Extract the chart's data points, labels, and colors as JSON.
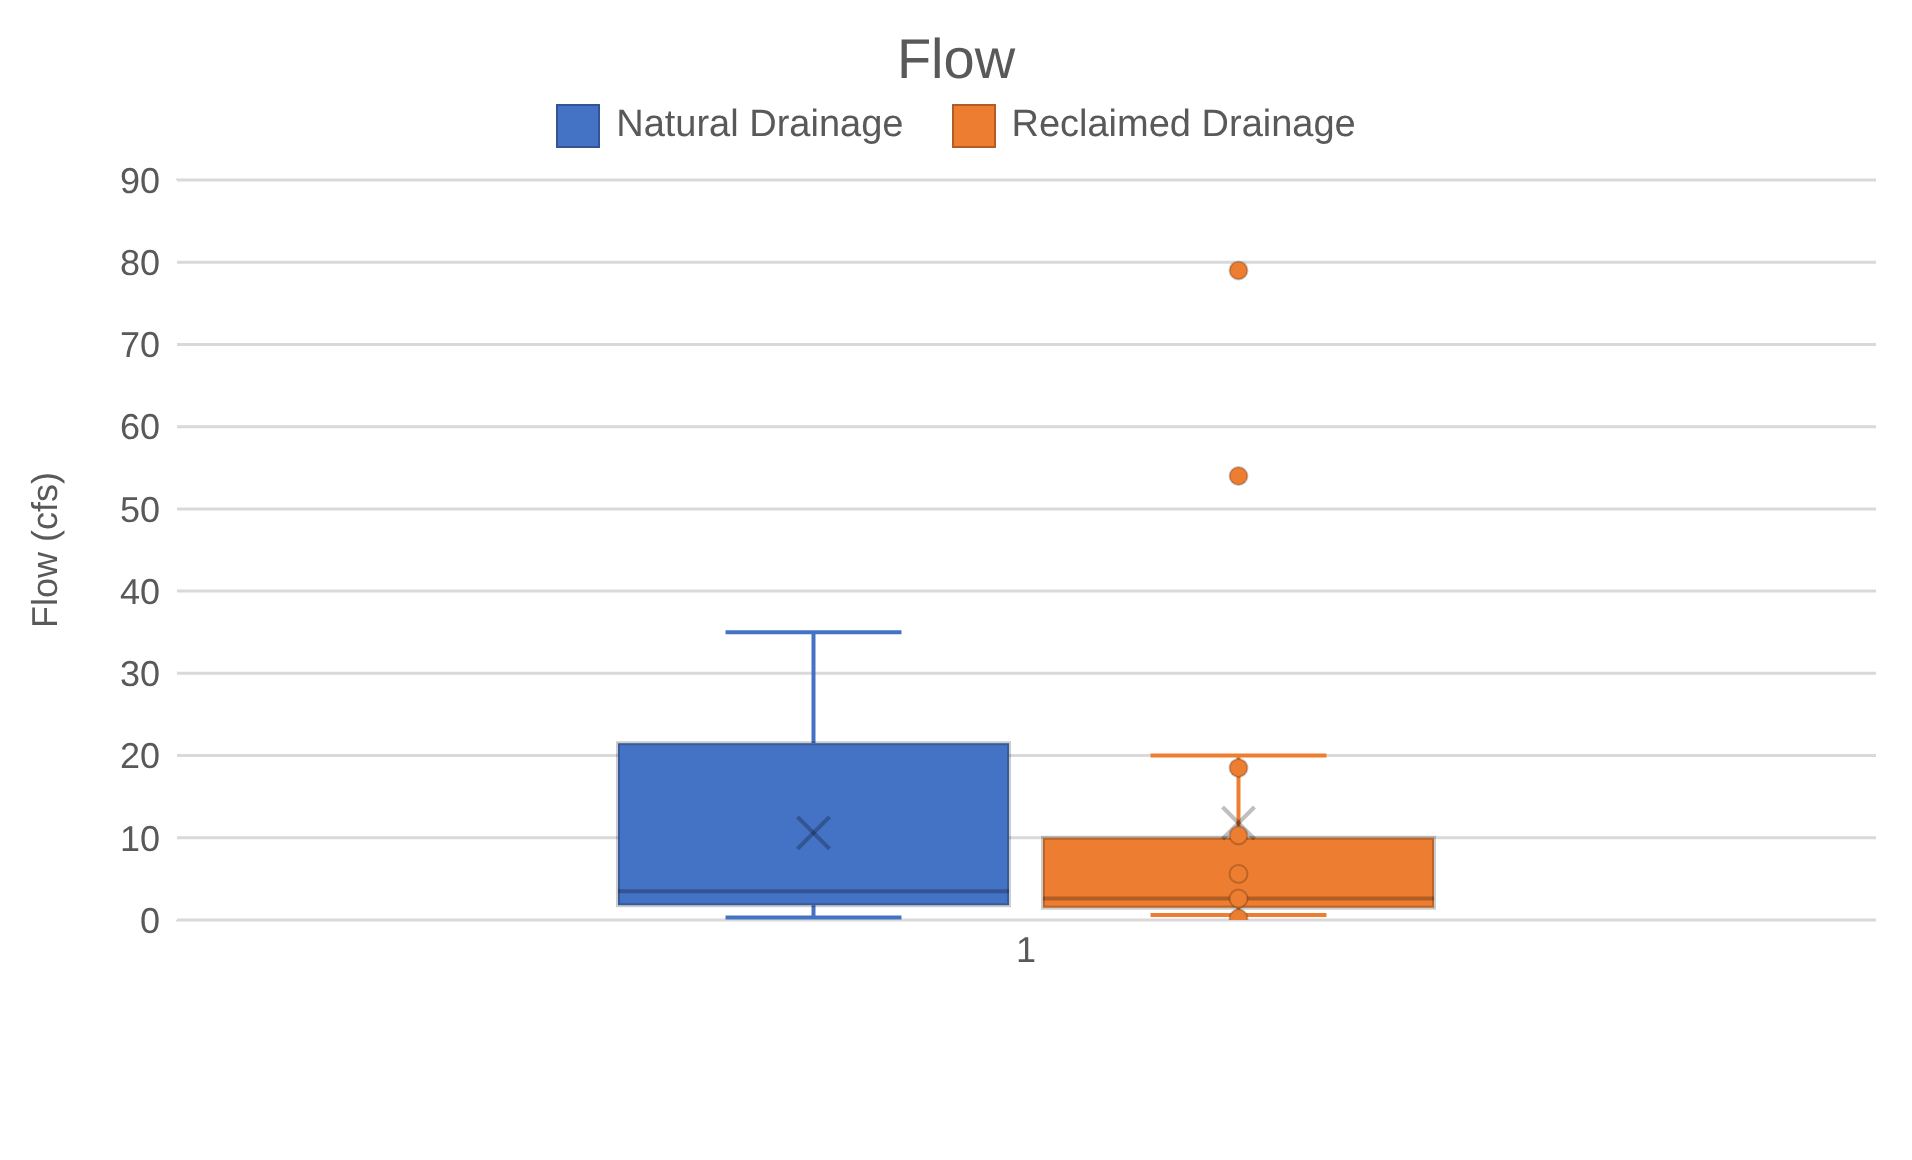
{
  "chart_data": {
    "type": "box",
    "title": "Flow",
    "ylabel": "Flow (cfs)",
    "categories": [
      "1"
    ],
    "series": [
      {
        "name": "Natural Drainage",
        "color": "#4472c4",
        "boxes": [
          {
            "low": 0.3,
            "q1": 1.8,
            "median": 3.5,
            "q3": 21.5,
            "high": 35,
            "mean": 10.6
          }
        ]
      },
      {
        "name": "Reclaimed Drainage",
        "color": "#ed7d31",
        "boxes": [
          {
            "low": 0.6,
            "q1": 1.5,
            "median": 2.6,
            "q3": 10,
            "high": 20,
            "mean": 11.8,
            "outliers": [
              79,
              54,
              18.5,
              10.3,
              5.6,
              2.6,
              0.2
            ]
          }
        ]
      }
    ],
    "ylim": [
      0,
      90
    ],
    "yticks": [
      0,
      10,
      20,
      30,
      40,
      50,
      60,
      70,
      80,
      90
    ],
    "grid": "y",
    "legend": "top"
  }
}
